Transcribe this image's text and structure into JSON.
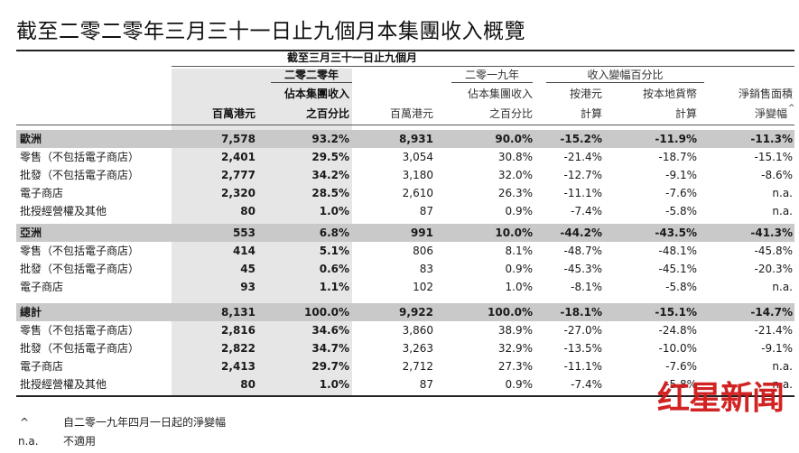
{
  "title": "截至二零二零年三月三十一日止九個月本集團收入概覽",
  "header": {
    "period": "截至三月三十一日止九個月",
    "year_2020": "二零二零年",
    "year_2019": "二零一九年",
    "change_group": "收入變幅百分比",
    "col_hkd_m_2020": "百萬港元",
    "col_pct_2020_l1": "佔本集團收入",
    "col_pct_2020_l2": "之百分比",
    "col_hkd_m_2019": "百萬港元",
    "col_pct_2019_l1": "佔本集團收入",
    "col_pct_2019_l2": "之百分比",
    "col_hkd_l1": "按港元",
    "col_hkd_l2": "計算",
    "col_local_l1": "按本地貨幣",
    "col_local_l2": "計算",
    "col_net_l1": "淨銷售面積",
    "col_net_l2": "淨變幅",
    "col_net_mark": "^"
  },
  "rows": [
    {
      "label": "歐洲",
      "v1": "7,578",
      "p1": "93.2%",
      "v2": "8,931",
      "p2": "90.0%",
      "hkd": "-15.2%",
      "local": "-11.9%",
      "net": "-11.3%"
    },
    {
      "label": "零售（不包括電子商店）",
      "v1": "2,401",
      "p1": "29.5%",
      "v2": "3,054",
      "p2": "30.8%",
      "hkd": "-21.4%",
      "local": "-18.7%",
      "net": "-15.1%"
    },
    {
      "label": "批發（不包括電子商店）",
      "v1": "2,777",
      "p1": "34.2%",
      "v2": "3,180",
      "p2": "32.0%",
      "hkd": "-12.7%",
      "local": "-9.1%",
      "net": "-8.6%"
    },
    {
      "label": "電子商店",
      "v1": "2,320",
      "p1": "28.5%",
      "v2": "2,610",
      "p2": "26.3%",
      "hkd": "-11.1%",
      "local": "-7.6%",
      "net": "n.a."
    },
    {
      "label": "批授經營權及其他",
      "v1": "80",
      "p1": "1.0%",
      "v2": "87",
      "p2": "0.9%",
      "hkd": "-7.4%",
      "local": "-5.8%",
      "net": "n.a."
    },
    {
      "label": "亞洲",
      "v1": "553",
      "p1": "6.8%",
      "v2": "991",
      "p2": "10.0%",
      "hkd": "-44.2%",
      "local": "-43.5%",
      "net": "-41.3%"
    },
    {
      "label": "零售（不包括電子商店）",
      "v1": "414",
      "p1": "5.1%",
      "v2": "806",
      "p2": "8.1%",
      "hkd": "-48.7%",
      "local": "-48.1%",
      "net": "-45.8%"
    },
    {
      "label": "批發（不包括電子商店）",
      "v1": "45",
      "p1": "0.6%",
      "v2": "83",
      "p2": "0.9%",
      "hkd": "-45.3%",
      "local": "-45.1%",
      "net": "-20.3%"
    },
    {
      "label": "電子商店",
      "v1": "93",
      "p1": "1.1%",
      "v2": "102",
      "p2": "1.0%",
      "hkd": "-8.1%",
      "local": "-5.8%",
      "net": "n.a."
    },
    {
      "label": "總計",
      "v1": "8,131",
      "p1": "100.0%",
      "v2": "9,922",
      "p2": "100.0%",
      "hkd": "-18.1%",
      "local": "-15.1%",
      "net": "-14.7%"
    },
    {
      "label": "零售（不包括電子商店）",
      "v1": "2,816",
      "p1": "34.6%",
      "v2": "3,860",
      "p2": "38.9%",
      "hkd": "-27.0%",
      "local": "-24.8%",
      "net": "-21.4%"
    },
    {
      "label": "批發（不包括電子商店）",
      "v1": "2,822",
      "p1": "34.7%",
      "v2": "3,263",
      "p2": "32.9%",
      "hkd": "-13.5%",
      "local": "-10.0%",
      "net": "-9.1%"
    },
    {
      "label": "電子商店",
      "v1": "2,413",
      "p1": "29.7%",
      "v2": "2,712",
      "p2": "27.3%",
      "hkd": "-11.1%",
      "local": "-7.6%",
      "net": "n.a."
    },
    {
      "label": "批授經營權及其他",
      "v1": "80",
      "p1": "1.0%",
      "v2": "87",
      "p2": "0.9%",
      "hkd": "-7.4%",
      "local": "-5.8%",
      "net": "n.a."
    }
  ],
  "notes": [
    {
      "symbol": "^",
      "text": "自二零一九年四月一日起的淨變幅"
    },
    {
      "symbol": "n.a.",
      "text": "不適用"
    }
  ],
  "watermark": "红星新闻",
  "colors": {
    "section_bar": "#c9c9c9",
    "shaded_column": "#e6e6e6",
    "watermark": "#d01818"
  }
}
